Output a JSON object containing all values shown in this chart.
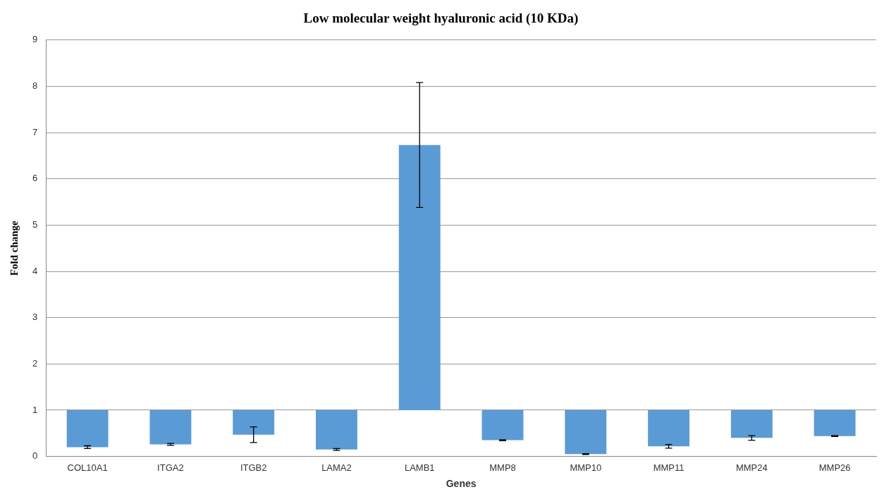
{
  "chart_data": {
    "type": "bar",
    "title": "Low molecular weight hyaluronic acid (10 KDa)",
    "xlabel": "Genes",
    "ylabel": "Fold change",
    "categories": [
      "COL10A1",
      "ITGA2",
      "ITGB2",
      "LAMA2",
      "LAMB1",
      "MMP8",
      "MMP10",
      "MMP11",
      "MMP24",
      "MMP26"
    ],
    "base": [
      1,
      1,
      1,
      1,
      1,
      1,
      1,
      1,
      1,
      1
    ],
    "values": [
      -0.8,
      -0.74,
      -0.53,
      -0.85,
      5.73,
      -0.65,
      -0.95,
      -0.78,
      -0.6,
      -0.56
    ],
    "errors": [
      0.03,
      0.02,
      0.17,
      0.02,
      1.35,
      0.01,
      0.01,
      0.04,
      0.05,
      0.01
    ],
    "color": "#5b9bd5",
    "ylim": [
      0,
      9
    ],
    "yticks": [
      0,
      1,
      2,
      3,
      4,
      5,
      6,
      7,
      8,
      9
    ],
    "grid": "y"
  }
}
